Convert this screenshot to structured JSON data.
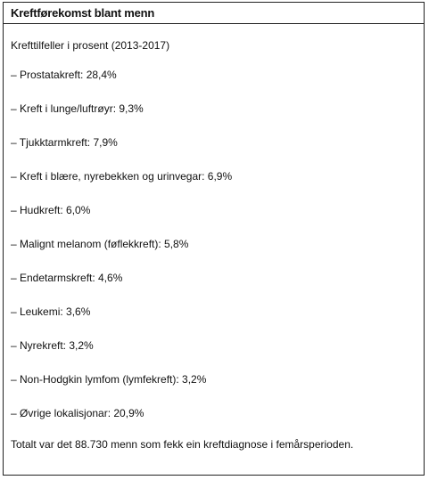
{
  "heading": "Kreftførekomst blant menn",
  "subtitle": "Krefttilfeller i prosent (2013-2017)",
  "items": [
    "– Prostatakreft: 28,4%",
    "– Kreft i lunge/luftrøyr: 9,3%",
    "– Tjukktarmkreft: 7,9%",
    "– Kreft i blære, nyrebekken og urinvegar: 6,9%",
    "– Hudkreft: 6,0%",
    "– Malignt melanom (føflekkreft): 5,8%",
    "– Endetarmskreft: 4,6%",
    "– Leukemi: 3,6%",
    "– Nyrekreft: 3,2%",
    "– Non-Hodgkin lymfom (lymfekreft): 3,2%",
    "– Øvrige lokalisjonar: 20,9%"
  ],
  "total": "Totalt var det 88.730 menn som fekk ein kreftdiagnose i femårsperioden."
}
